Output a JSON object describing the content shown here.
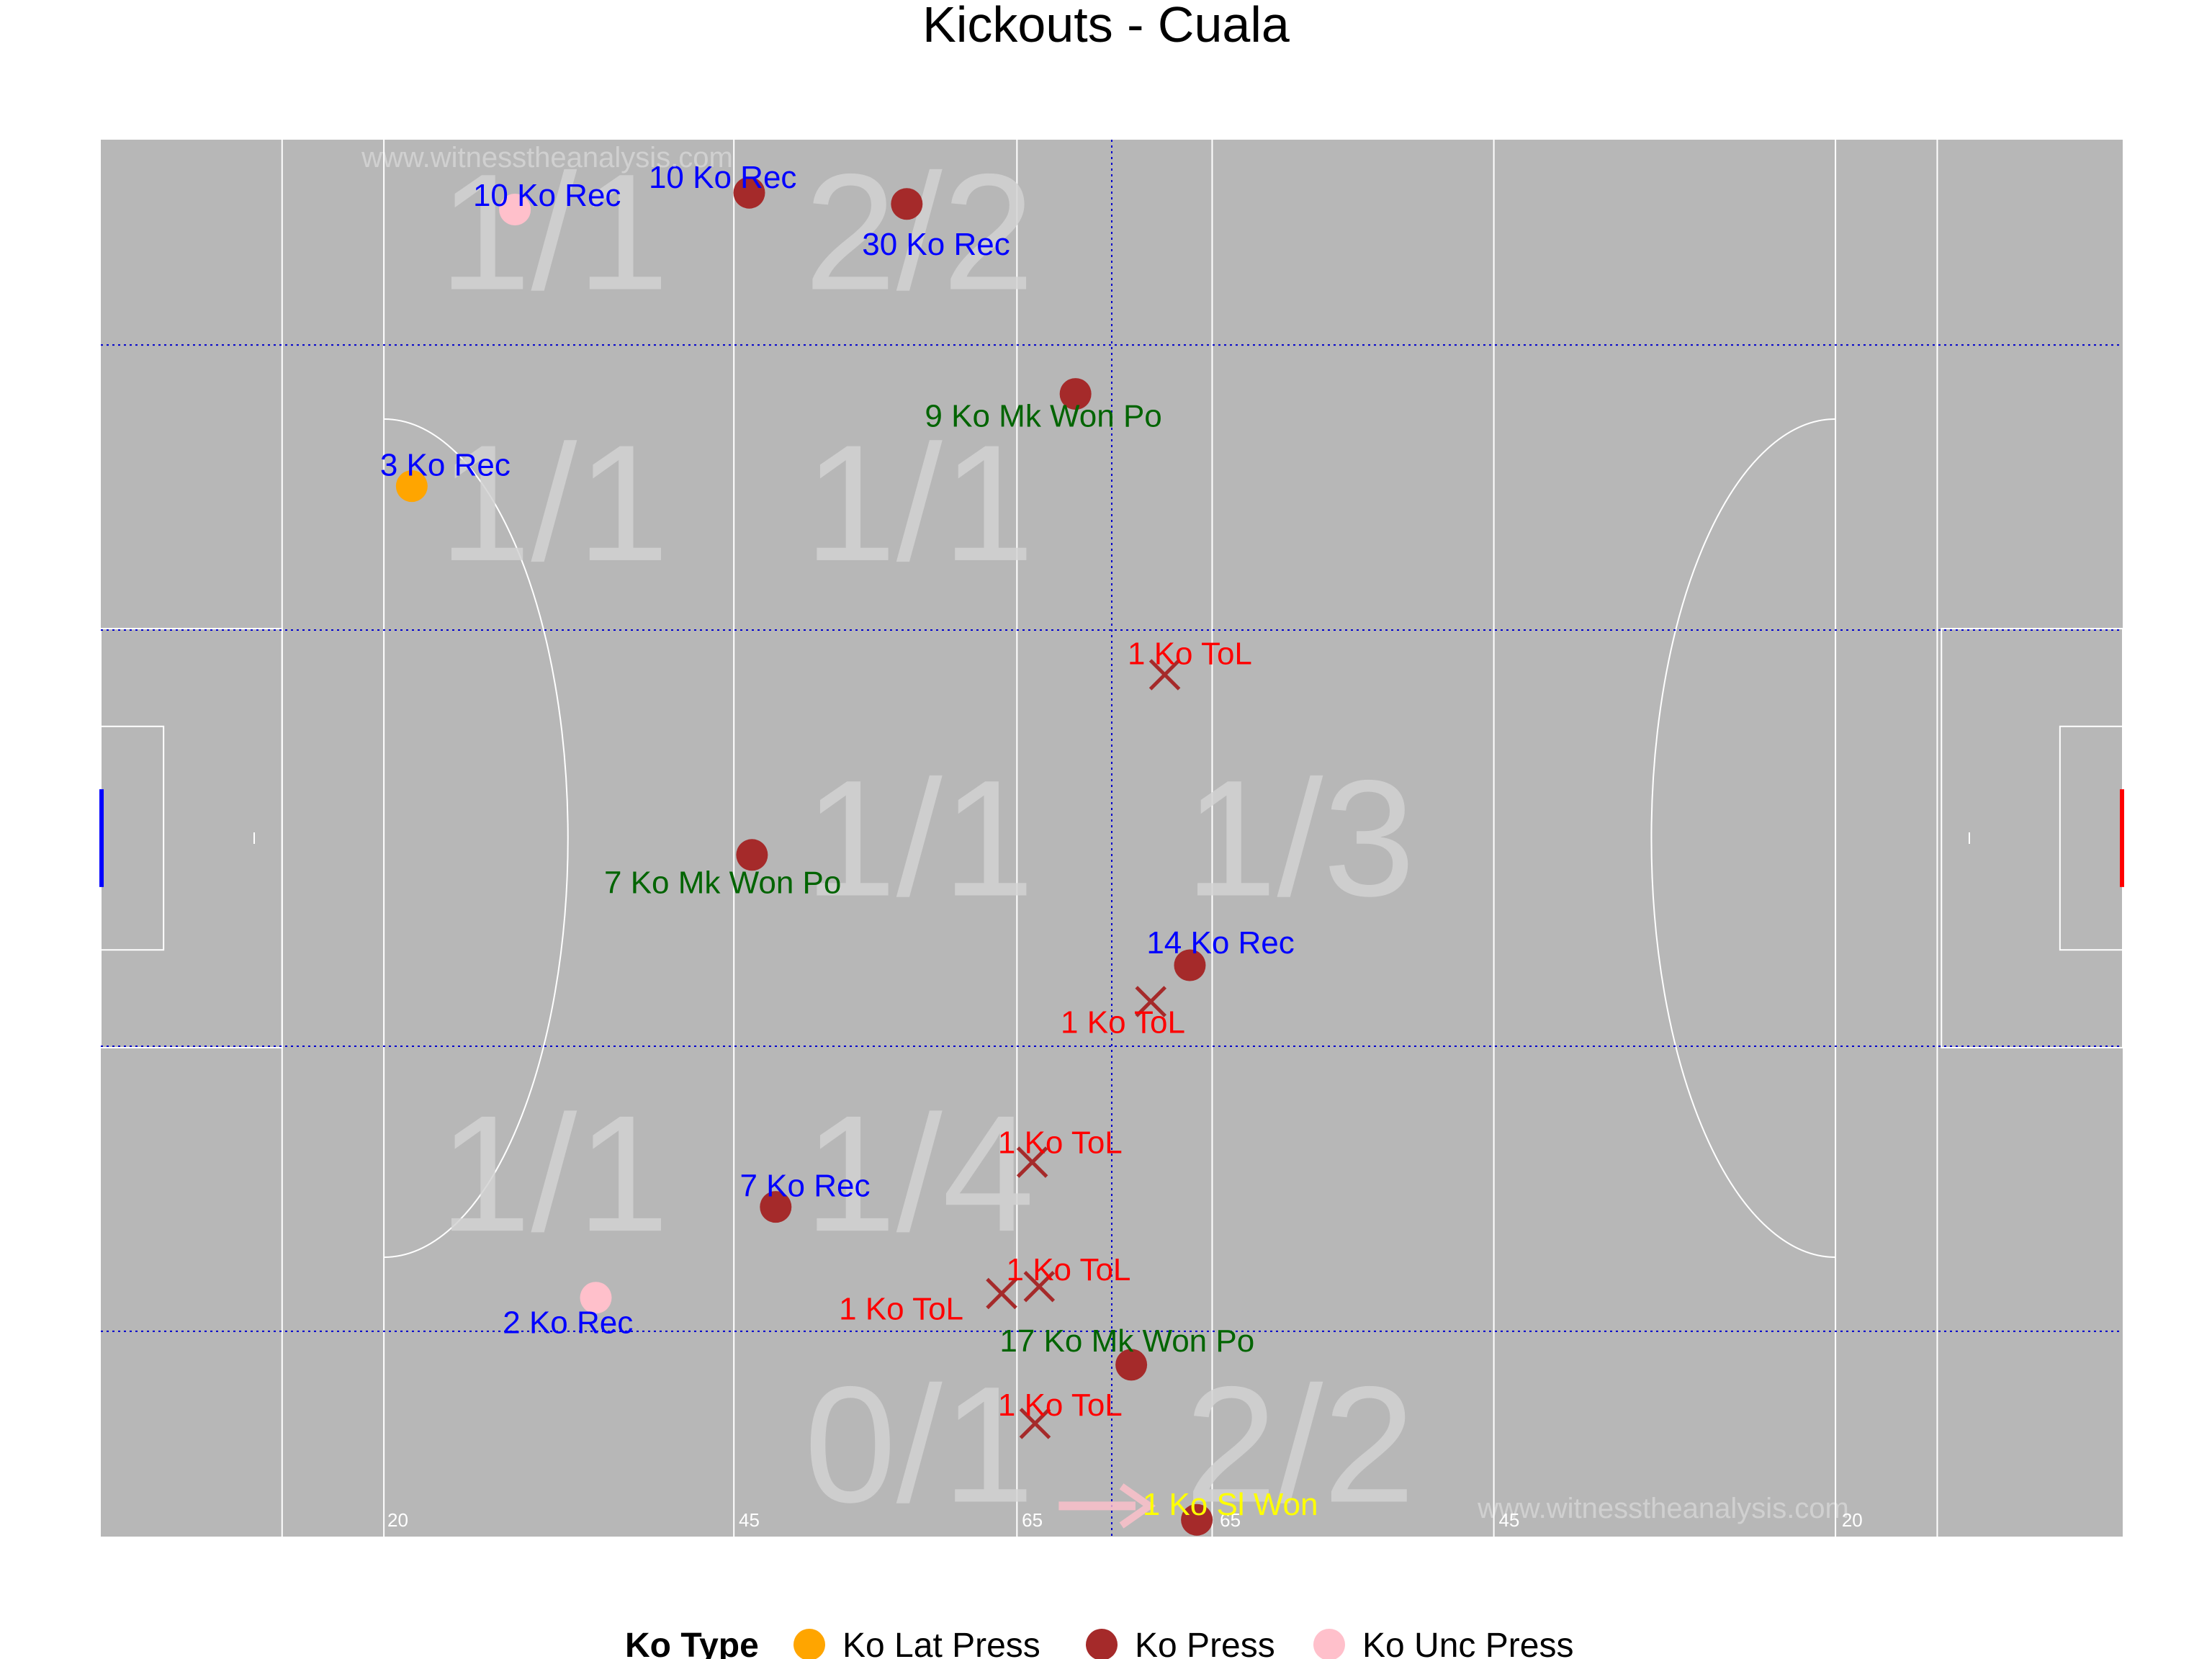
{
  "chart_data": {
    "type": "scatter",
    "title": "Kickouts - Cuala",
    "watermark": "www.witnesstheanalysis.com",
    "xlim": [
      0,
      145
    ],
    "ylim": [
      0,
      100
    ],
    "pitch_lines_x": [
      13,
      20.3,
      45.4,
      65.7,
      79.7,
      99.9,
      124.4,
      131.7
    ],
    "zone_dividers_x": [
      72.5
    ],
    "zone_dividers_y": [
      14.7,
      35.1,
      64.9,
      85.3
    ],
    "pitch_tick_labels": [
      {
        "x": 21.3,
        "label": "20"
      },
      {
        "x": 46.5,
        "label": "45"
      },
      {
        "x": 66.8,
        "label": "65"
      },
      {
        "x": 81.0,
        "label": "65"
      },
      {
        "x": 101.0,
        "label": "45"
      },
      {
        "x": 125.6,
        "label": "20"
      }
    ],
    "zone_counts": [
      {
        "x": 32.5,
        "y": 93.4,
        "label": "1/1"
      },
      {
        "x": 58.7,
        "y": 93.4,
        "label": "2/2"
      },
      {
        "x": 32.5,
        "y": 74.0,
        "label": "1/1"
      },
      {
        "x": 58.7,
        "y": 74.0,
        "label": "1/1"
      },
      {
        "x": 58.7,
        "y": 50.0,
        "label": "1/1"
      },
      {
        "x": 86.0,
        "y": 50.0,
        "label": "1/3"
      },
      {
        "x": 32.5,
        "y": 26.0,
        "label": "1/1"
      },
      {
        "x": 58.7,
        "y": 26.0,
        "label": "1/4"
      },
      {
        "x": 58.7,
        "y": 6.6,
        "label": "0/1"
      },
      {
        "x": 86.0,
        "y": 6.6,
        "label": "2/2"
      }
    ],
    "points": [
      {
        "x": 29.7,
        "y": 95.0,
        "type": "Ko Unc Press",
        "outcome": "won"
      },
      {
        "x": 46.5,
        "y": 96.2,
        "type": "Ko Press",
        "outcome": "won"
      },
      {
        "x": 57.8,
        "y": 95.4,
        "type": "Ko Press",
        "outcome": "won"
      },
      {
        "x": 69.9,
        "y": 81.8,
        "type": "Ko Press",
        "outcome": "won"
      },
      {
        "x": 22.3,
        "y": 75.2,
        "type": "Ko Lat Press",
        "outcome": "won"
      },
      {
        "x": 76.3,
        "y": 61.7,
        "type": "Ko Press",
        "outcome": "lost"
      },
      {
        "x": 46.7,
        "y": 48.8,
        "type": "Ko Press",
        "outcome": "won"
      },
      {
        "x": 78.1,
        "y": 40.9,
        "type": "Ko Press",
        "outcome": "won"
      },
      {
        "x": 75.3,
        "y": 38.3,
        "type": "Ko Press",
        "outcome": "lost"
      },
      {
        "x": 66.8,
        "y": 26.8,
        "type": "Ko Press",
        "outcome": "lost"
      },
      {
        "x": 48.4,
        "y": 23.6,
        "type": "Ko Press",
        "outcome": "won"
      },
      {
        "x": 35.5,
        "y": 17.1,
        "type": "Ko Unc Press",
        "outcome": "won"
      },
      {
        "x": 64.6,
        "y": 17.4,
        "type": "Ko Press",
        "outcome": "lost"
      },
      {
        "x": 67.3,
        "y": 17.9,
        "type": "Ko Press",
        "outcome": "lost"
      },
      {
        "x": 73.9,
        "y": 12.3,
        "type": "Ko Press",
        "outcome": "won"
      },
      {
        "x": 67.0,
        "y": 8.1,
        "type": "Ko Press",
        "outcome": "lost"
      },
      {
        "x": 78.6,
        "y": 1.2,
        "type": "Ko Press",
        "outcome": "won"
      }
    ],
    "annotations": [
      {
        "x": 32.0,
        "y": 96.0,
        "label": "10 Ko Rec",
        "color": "#0000ff"
      },
      {
        "x": 44.6,
        "y": 97.3,
        "label": "10 Ko Rec",
        "color": "#0000ff"
      },
      {
        "x": 59.9,
        "y": 92.5,
        "label": "30 Ko Rec",
        "color": "#0000ff"
      },
      {
        "x": 67.6,
        "y": 80.2,
        "label": "9 Ko Mk Won Po",
        "color": "#006400"
      },
      {
        "x": 24.7,
        "y": 76.7,
        "label": "3 Ko Rec",
        "color": "#0000ff"
      },
      {
        "x": 78.1,
        "y": 63.2,
        "label": "1 Ko ToL",
        "color": "#ff0000"
      },
      {
        "x": 44.6,
        "y": 46.8,
        "label": "7 Ko Mk Won Po",
        "color": "#006400"
      },
      {
        "x": 80.3,
        "y": 42.5,
        "label": "14 Ko Rec",
        "color": "#0000ff"
      },
      {
        "x": 73.3,
        "y": 36.8,
        "label": "1 Ko ToL",
        "color": "#ff0000"
      },
      {
        "x": 68.8,
        "y": 28.2,
        "label": "1 Ko ToL",
        "color": "#ff0000"
      },
      {
        "x": 50.5,
        "y": 25.1,
        "label": "7 Ko Rec",
        "color": "#0000ff"
      },
      {
        "x": 33.5,
        "y": 15.3,
        "label": "2 Ko Rec",
        "color": "#0000ff"
      },
      {
        "x": 69.4,
        "y": 19.1,
        "label": "1 Ko ToL",
        "color": "#ff0000"
      },
      {
        "x": 57.4,
        "y": 16.3,
        "label": "1 Ko ToL",
        "color": "#ff0000"
      },
      {
        "x": 73.6,
        "y": 14.0,
        "label": "17 Ko Mk Won Po",
        "color": "#006400"
      },
      {
        "x": 68.8,
        "y": 9.4,
        "label": "1 Ko ToL",
        "color": "#ff0000"
      },
      {
        "x": 81.0,
        "y": 2.3,
        "label": "1 Ko Sl Won",
        "color": "#ffff00"
      }
    ],
    "legend": {
      "title": "Ko Type",
      "position": "bottom",
      "items": [
        {
          "label": "Ko Lat Press",
          "color": "#ffa500"
        },
        {
          "label": "Ko Press",
          "color": "#a52a2a"
        },
        {
          "label": "Ko Unc Press",
          "color": "#ffc0cb"
        }
      ]
    },
    "colors": {
      "pitch": "#b7b7b7",
      "lines": "#ffffff",
      "divider": "#0000cd",
      "goal_left": "#0000ff",
      "goal_right": "#ff0000"
    }
  }
}
